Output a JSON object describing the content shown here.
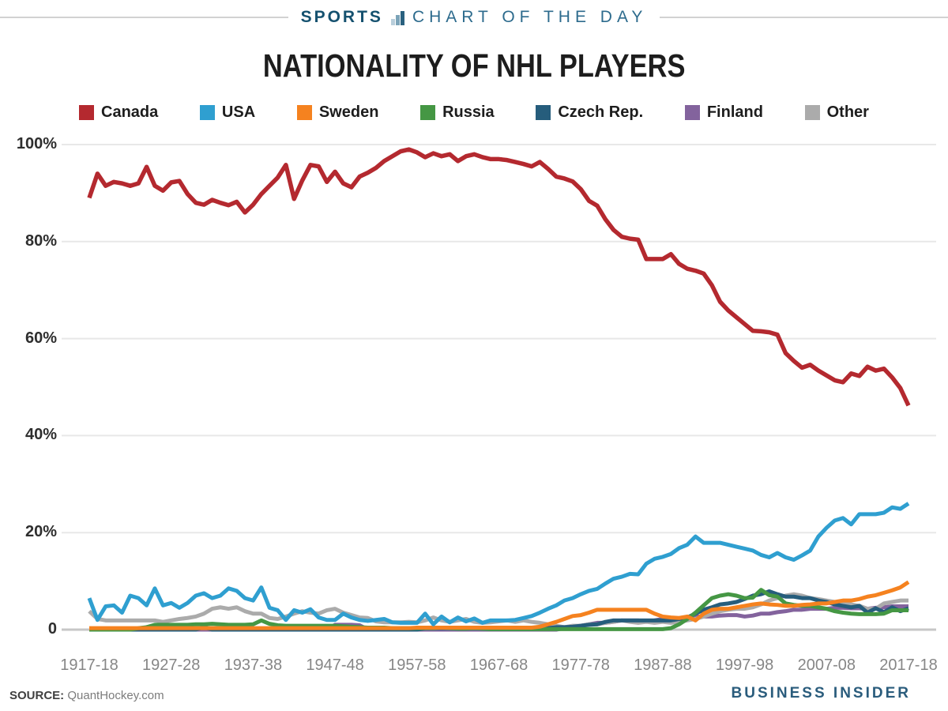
{
  "masthead": {
    "sports": "SPORTS",
    "rest": "CHART OF THE DAY",
    "icon": "bar-chart-icon",
    "colors": {
      "sports": "#15516f",
      "rest": "#2d6b8d",
      "rule": "#d2d2d2",
      "icon_bars": [
        "#b9cedb",
        "#7ba3b8",
        "#2a617f"
      ]
    }
  },
  "title": "NATIONALITY OF NHL PLAYERS",
  "footer": {
    "source_label": "SOURCE:",
    "source_value": "QuantHockey.com",
    "brand": "BUSINESS INSIDER"
  },
  "chart_data": {
    "type": "line",
    "title": "NATIONALITY OF NHL PLAYERS",
    "xlabel": "",
    "ylabel": "",
    "ylim": [
      0,
      100
    ],
    "grid": "horizontal",
    "legend_position": "top",
    "x_first_season": "1917-18",
    "x_last_season": "2017-18",
    "x_step_years": 1,
    "x_tick_labels": [
      "1917-18",
      "1927-28",
      "1937-38",
      "1947-48",
      "1957-58",
      "1967-68",
      "1977-78",
      "1987-88",
      "1997-98",
      "2007-08",
      "2017-18"
    ],
    "y_tick_labels": [
      "100%",
      "80%",
      "60%",
      "40%",
      "20%",
      "0"
    ],
    "y_tick_values": [
      100,
      80,
      60,
      40,
      20,
      0
    ],
    "zero_line_color": "#c7c7c7",
    "grid_color": "#e8e8e8",
    "series": [
      {
        "name": "Canada",
        "color": "#b4292f",
        "values": [
          89,
          94,
          91.5,
          92.3,
          92,
          91.5,
          92,
          95.4,
          91.5,
          90.5,
          92.2,
          92.5,
          89.8,
          88,
          87.6,
          88.6,
          88,
          87.5,
          88.2,
          86,
          87.6,
          89.8,
          91.5,
          93.2,
          95.8,
          88.8,
          92.6,
          95.8,
          95.5,
          92.3,
          94.4,
          92,
          91.2,
          93.4,
          94.2,
          95.2,
          96.6,
          97.6,
          98.6,
          99,
          98.4,
          97.4,
          98.2,
          97.6,
          98,
          96.6,
          97.6,
          98,
          97.4,
          97,
          97,
          96.8,
          96.4,
          96,
          95.5,
          96.4,
          95,
          93.4,
          93,
          92.4,
          90.8,
          88.4,
          87.4,
          84.6,
          82.4,
          81,
          80.6,
          80.4,
          76.4,
          76.4,
          76.4,
          77.4,
          75.4,
          74.4,
          74,
          73.4,
          71,
          67.6,
          65.8,
          64.4,
          63,
          61.6,
          61.5,
          61.3,
          60.8,
          57,
          55.4,
          54,
          54.6,
          53.4,
          52.4,
          51.4,
          51,
          52.8,
          52.3,
          54.2,
          53.4,
          53.8,
          52,
          49.8,
          46.2
        ]
      },
      {
        "name": "USA",
        "color": "#2f9fd0",
        "values": [
          6.5,
          2,
          4.8,
          5,
          3.5,
          7,
          6.5,
          5,
          8.5,
          5,
          5.5,
          4.5,
          5.5,
          7,
          7.5,
          6.5,
          7,
          8.5,
          8,
          6.5,
          6,
          8.7,
          4.5,
          4,
          2,
          4,
          3.5,
          4.2,
          2.5,
          2,
          2,
          3.3,
          2.5,
          2,
          1.8,
          2,
          2.2,
          1.5,
          1.4,
          1.4,
          1.4,
          3.3,
          1.1,
          2.7,
          1.5,
          2.5,
          1.7,
          2.3,
          1.4,
          1.9,
          1.9,
          1.9,
          2,
          2.4,
          2.8,
          3.5,
          4.3,
          5,
          6,
          6.5,
          7.3,
          8,
          8.4,
          9.5,
          10.5,
          10.9,
          11.5,
          11.4,
          13.6,
          14.6,
          15,
          15.6,
          16.8,
          17.5,
          19.2,
          17.9,
          17.9,
          17.9,
          17.5,
          17.1,
          16.7,
          16.3,
          15.4,
          14.9,
          15.8,
          14.9,
          14.4,
          15.3,
          16.3,
          19.2,
          21,
          22.5,
          23,
          21.7,
          23.8,
          23.8,
          23.8,
          24.1,
          25.2,
          24.9,
          26
        ]
      },
      {
        "name": "Sweden",
        "color": "#f5821f",
        "values": [
          0.3,
          0.3,
          0.3,
          0.3,
          0.3,
          0.3,
          0.3,
          0.3,
          0.3,
          0.3,
          0.3,
          0.3,
          0.3,
          0.3,
          0.3,
          0.3,
          0.3,
          0.3,
          0.3,
          0.3,
          0.3,
          0.3,
          0.3,
          0.3,
          0.3,
          0.3,
          0.3,
          0.3,
          0.3,
          0.3,
          0.3,
          0.3,
          0.3,
          0.3,
          0.3,
          0.3,
          0.3,
          0.3,
          0.3,
          0.3,
          0.4,
          0.4,
          0.4,
          0.4,
          0.4,
          0.4,
          0.4,
          0.4,
          0.4,
          0.4,
          0.4,
          0.4,
          0.4,
          0.4,
          0.4,
          0.6,
          1.1,
          1.6,
          2.2,
          2.8,
          3,
          3.5,
          4.1,
          4.1,
          4.1,
          4.1,
          4.1,
          4.1,
          4.1,
          3.3,
          2.7,
          2.5,
          2.4,
          2.7,
          1.9,
          3.3,
          4.1,
          4.3,
          4.3,
          4.6,
          4.9,
          5.2,
          5.4,
          5.2,
          5.1,
          4.9,
          4.9,
          5.1,
          5.2,
          5.4,
          5.4,
          5.7,
          6,
          6,
          6.3,
          6.8,
          7.1,
          7.6,
          8.1,
          8.7,
          9.8
        ]
      },
      {
        "name": "Russia",
        "color": "#459744",
        "values": [
          0,
          0,
          0,
          0,
          0,
          0,
          0.3,
          0.5,
          1,
          1,
          1,
          1,
          1,
          1.1,
          1.1,
          1.2,
          1.1,
          1,
          1,
          1,
          1.1,
          1.9,
          1.2,
          0.9,
          0.8,
          0.8,
          0.8,
          0.8,
          0.8,
          0.8,
          0.8,
          0.7,
          0.6,
          0.5,
          0.4,
          0.4,
          0.4,
          0.3,
          0.3,
          0.3,
          0.3,
          0.3,
          0.3,
          0.4,
          0.3,
          0.2,
          0.2,
          0.3,
          0.2,
          0.1,
          0.1,
          0.1,
          0.1,
          0.1,
          0.1,
          0.1,
          0.1,
          0.1,
          0.1,
          0.1,
          0.1,
          0.1,
          0.1,
          0.1,
          0.1,
          0.1,
          0.1,
          0.1,
          0.1,
          0.1,
          0.1,
          0.3,
          1.1,
          2.2,
          3.5,
          5,
          6.5,
          7,
          7.3,
          7,
          6.5,
          6.6,
          8.2,
          7.1,
          6.8,
          5.4,
          5.1,
          4.9,
          4.9,
          4.6,
          4.3,
          3.8,
          3.5,
          3.3,
          3.2,
          3.2,
          3.2,
          3.3,
          4,
          4,
          4
        ]
      },
      {
        "name": "Czech Rep.",
        "color": "#265d7c",
        "values": [
          0,
          0,
          0,
          0,
          0,
          0,
          0,
          0,
          0,
          0,
          0,
          0,
          0,
          0,
          0.5,
          0,
          0,
          0,
          0,
          0,
          0,
          0,
          0,
          0,
          0,
          0,
          0,
          0,
          0,
          0,
          0,
          0,
          0,
          0,
          0,
          0,
          0,
          0,
          0,
          0,
          0,
          0.3,
          0.3,
          0.3,
          0.3,
          0.3,
          0.3,
          0.3,
          0.3,
          0.3,
          0.3,
          0.3,
          0.3,
          0.3,
          0.3,
          0.3,
          0.3,
          0.5,
          0.5,
          0.6,
          0.8,
          1,
          1.1,
          1.6,
          1.9,
          1.9,
          1.9,
          1.9,
          1.9,
          1.9,
          1.9,
          1.9,
          2.2,
          2.5,
          3.3,
          4.1,
          4.6,
          5.2,
          5.4,
          5.7,
          6.3,
          7,
          7.3,
          7.9,
          7.3,
          6.8,
          6.8,
          6.5,
          6.5,
          6,
          5.7,
          5.2,
          4.9,
          4.6,
          4.9,
          3.5,
          4.4,
          3.6,
          4.6,
          3.8,
          4.4
        ]
      },
      {
        "name": "Finland",
        "color": "#83639d",
        "values": [
          0,
          0,
          0,
          0,
          0,
          0,
          0,
          0.5,
          0.5,
          0,
          0,
          0,
          0,
          0,
          0,
          0,
          0,
          0,
          0,
          0,
          0,
          0,
          0,
          0,
          0,
          0,
          0,
          0,
          0,
          0,
          1,
          1,
          1,
          0.9,
          0,
          0,
          0,
          0,
          0,
          0,
          0,
          0,
          0,
          0,
          0,
          0,
          0,
          0,
          0,
          0,
          0,
          0,
          0,
          0,
          0,
          0,
          0,
          0,
          0.3,
          0.5,
          0.8,
          1.1,
          1.4,
          1.4,
          1.6,
          1.9,
          1.9,
          1.9,
          1.6,
          1.9,
          2.2,
          2.2,
          2.2,
          2.4,
          2.7,
          2.7,
          2.7,
          2.9,
          3,
          3,
          2.7,
          2.9,
          3.3,
          3.3,
          3.6,
          3.8,
          4.1,
          4.1,
          4.3,
          4.3,
          4.3,
          4.5,
          4.5,
          4.4,
          4.4,
          4.3,
          4.5,
          4.6,
          4.8,
          4.8,
          4.8
        ]
      },
      {
        "name": "Other",
        "color": "#ababab",
        "values": [
          3.8,
          2.2,
          1.9,
          1.9,
          1.9,
          1.9,
          1.9,
          1.9,
          1.9,
          1.6,
          1.9,
          2.2,
          2.4,
          2.7,
          3.3,
          4.3,
          4.6,
          4.3,
          4.6,
          3.8,
          3.3,
          3.3,
          2.4,
          2.2,
          2.7,
          3.3,
          3.8,
          3.5,
          3.3,
          4,
          4.3,
          3.5,
          3,
          2.5,
          2.4,
          1.7,
          1.5,
          1.5,
          1.5,
          1.6,
          1.5,
          1.9,
          2.5,
          1.9,
          1.6,
          1.9,
          2.2,
          1.6,
          1.4,
          1.5,
          1.7,
          1.9,
          1.6,
          1.9,
          1.6,
          1.4,
          1.1,
          0.8,
          0.5,
          0.8,
          0.8,
          1.1,
          1.1,
          1.4,
          1.6,
          1.9,
          1.6,
          1.4,
          1.6,
          1.4,
          1.6,
          1.4,
          1.6,
          1.9,
          2.2,
          2.7,
          3.3,
          3.8,
          4.1,
          4.3,
          4.3,
          4.6,
          5.2,
          6,
          6.5,
          7,
          7.3,
          7,
          6.5,
          6.3,
          6,
          5.7,
          5.4,
          5.2,
          4.9,
          4.3,
          4.3,
          5.4,
          5.7,
          6,
          6
        ]
      }
    ]
  }
}
